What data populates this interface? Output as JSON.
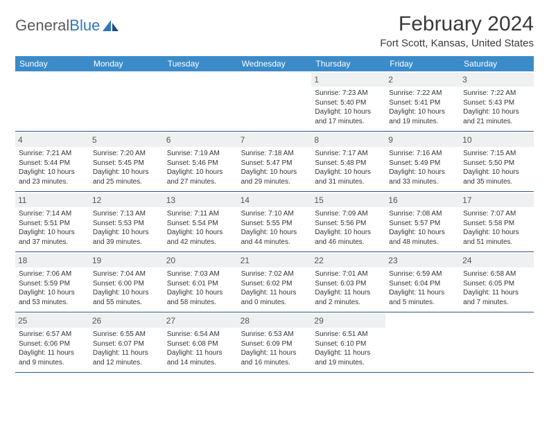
{
  "logo": {
    "text1": "General",
    "text2": "Blue"
  },
  "title": "February 2024",
  "location": "Fort Scott, Kansas, United States",
  "header_bg": "#3b8bc9",
  "daynum_bg": "#eef0f1",
  "border_color": "#2a5a8a",
  "weekdays": [
    "Sunday",
    "Monday",
    "Tuesday",
    "Wednesday",
    "Thursday",
    "Friday",
    "Saturday"
  ],
  "weeks": [
    [
      {
        "n": "",
        "sr": "",
        "ss": "",
        "dl": ""
      },
      {
        "n": "",
        "sr": "",
        "ss": "",
        "dl": ""
      },
      {
        "n": "",
        "sr": "",
        "ss": "",
        "dl": ""
      },
      {
        "n": "",
        "sr": "",
        "ss": "",
        "dl": ""
      },
      {
        "n": "1",
        "sr": "Sunrise: 7:23 AM",
        "ss": "Sunset: 5:40 PM",
        "dl": "Daylight: 10 hours and 17 minutes."
      },
      {
        "n": "2",
        "sr": "Sunrise: 7:22 AM",
        "ss": "Sunset: 5:41 PM",
        "dl": "Daylight: 10 hours and 19 minutes."
      },
      {
        "n": "3",
        "sr": "Sunrise: 7:22 AM",
        "ss": "Sunset: 5:43 PM",
        "dl": "Daylight: 10 hours and 21 minutes."
      }
    ],
    [
      {
        "n": "4",
        "sr": "Sunrise: 7:21 AM",
        "ss": "Sunset: 5:44 PM",
        "dl": "Daylight: 10 hours and 23 minutes."
      },
      {
        "n": "5",
        "sr": "Sunrise: 7:20 AM",
        "ss": "Sunset: 5:45 PM",
        "dl": "Daylight: 10 hours and 25 minutes."
      },
      {
        "n": "6",
        "sr": "Sunrise: 7:19 AM",
        "ss": "Sunset: 5:46 PM",
        "dl": "Daylight: 10 hours and 27 minutes."
      },
      {
        "n": "7",
        "sr": "Sunrise: 7:18 AM",
        "ss": "Sunset: 5:47 PM",
        "dl": "Daylight: 10 hours and 29 minutes."
      },
      {
        "n": "8",
        "sr": "Sunrise: 7:17 AM",
        "ss": "Sunset: 5:48 PM",
        "dl": "Daylight: 10 hours and 31 minutes."
      },
      {
        "n": "9",
        "sr": "Sunrise: 7:16 AM",
        "ss": "Sunset: 5:49 PM",
        "dl": "Daylight: 10 hours and 33 minutes."
      },
      {
        "n": "10",
        "sr": "Sunrise: 7:15 AM",
        "ss": "Sunset: 5:50 PM",
        "dl": "Daylight: 10 hours and 35 minutes."
      }
    ],
    [
      {
        "n": "11",
        "sr": "Sunrise: 7:14 AM",
        "ss": "Sunset: 5:51 PM",
        "dl": "Daylight: 10 hours and 37 minutes."
      },
      {
        "n": "12",
        "sr": "Sunrise: 7:13 AM",
        "ss": "Sunset: 5:53 PM",
        "dl": "Daylight: 10 hours and 39 minutes."
      },
      {
        "n": "13",
        "sr": "Sunrise: 7:11 AM",
        "ss": "Sunset: 5:54 PM",
        "dl": "Daylight: 10 hours and 42 minutes."
      },
      {
        "n": "14",
        "sr": "Sunrise: 7:10 AM",
        "ss": "Sunset: 5:55 PM",
        "dl": "Daylight: 10 hours and 44 minutes."
      },
      {
        "n": "15",
        "sr": "Sunrise: 7:09 AM",
        "ss": "Sunset: 5:56 PM",
        "dl": "Daylight: 10 hours and 46 minutes."
      },
      {
        "n": "16",
        "sr": "Sunrise: 7:08 AM",
        "ss": "Sunset: 5:57 PM",
        "dl": "Daylight: 10 hours and 48 minutes."
      },
      {
        "n": "17",
        "sr": "Sunrise: 7:07 AM",
        "ss": "Sunset: 5:58 PM",
        "dl": "Daylight: 10 hours and 51 minutes."
      }
    ],
    [
      {
        "n": "18",
        "sr": "Sunrise: 7:06 AM",
        "ss": "Sunset: 5:59 PM",
        "dl": "Daylight: 10 hours and 53 minutes."
      },
      {
        "n": "19",
        "sr": "Sunrise: 7:04 AM",
        "ss": "Sunset: 6:00 PM",
        "dl": "Daylight: 10 hours and 55 minutes."
      },
      {
        "n": "20",
        "sr": "Sunrise: 7:03 AM",
        "ss": "Sunset: 6:01 PM",
        "dl": "Daylight: 10 hours and 58 minutes."
      },
      {
        "n": "21",
        "sr": "Sunrise: 7:02 AM",
        "ss": "Sunset: 6:02 PM",
        "dl": "Daylight: 11 hours and 0 minutes."
      },
      {
        "n": "22",
        "sr": "Sunrise: 7:01 AM",
        "ss": "Sunset: 6:03 PM",
        "dl": "Daylight: 11 hours and 2 minutes."
      },
      {
        "n": "23",
        "sr": "Sunrise: 6:59 AM",
        "ss": "Sunset: 6:04 PM",
        "dl": "Daylight: 11 hours and 5 minutes."
      },
      {
        "n": "24",
        "sr": "Sunrise: 6:58 AM",
        "ss": "Sunset: 6:05 PM",
        "dl": "Daylight: 11 hours and 7 minutes."
      }
    ],
    [
      {
        "n": "25",
        "sr": "Sunrise: 6:57 AM",
        "ss": "Sunset: 6:06 PM",
        "dl": "Daylight: 11 hours and 9 minutes."
      },
      {
        "n": "26",
        "sr": "Sunrise: 6:55 AM",
        "ss": "Sunset: 6:07 PM",
        "dl": "Daylight: 11 hours and 12 minutes."
      },
      {
        "n": "27",
        "sr": "Sunrise: 6:54 AM",
        "ss": "Sunset: 6:08 PM",
        "dl": "Daylight: 11 hours and 14 minutes."
      },
      {
        "n": "28",
        "sr": "Sunrise: 6:53 AM",
        "ss": "Sunset: 6:09 PM",
        "dl": "Daylight: 11 hours and 16 minutes."
      },
      {
        "n": "29",
        "sr": "Sunrise: 6:51 AM",
        "ss": "Sunset: 6:10 PM",
        "dl": "Daylight: 11 hours and 19 minutes."
      },
      {
        "n": "",
        "sr": "",
        "ss": "",
        "dl": ""
      },
      {
        "n": "",
        "sr": "",
        "ss": "",
        "dl": ""
      }
    ]
  ]
}
